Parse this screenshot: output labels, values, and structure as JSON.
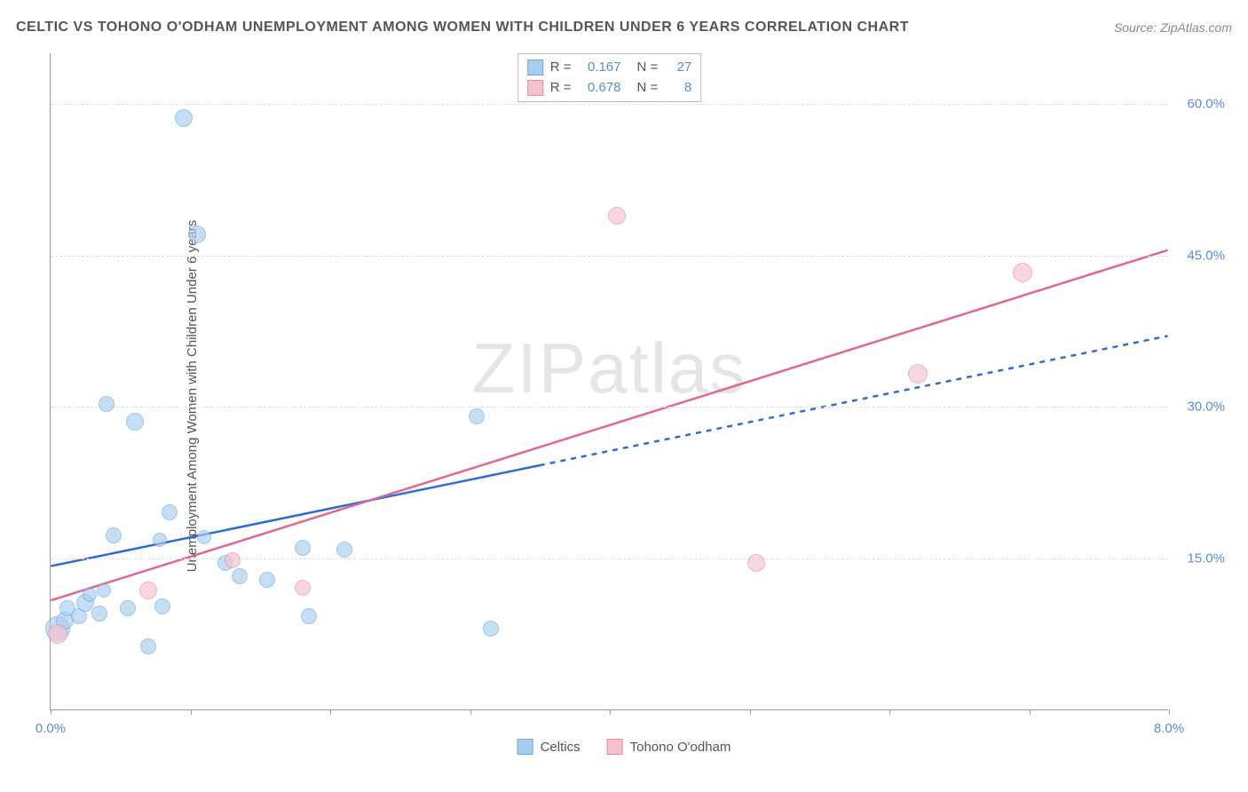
{
  "title": "CELTIC VS TOHONO O'ODHAM UNEMPLOYMENT AMONG WOMEN WITH CHILDREN UNDER 6 YEARS CORRELATION CHART",
  "source": "Source: ZipAtlas.com",
  "y_axis_label": "Unemployment Among Women with Children Under 6 years",
  "watermark": "ZIPatlas",
  "chart": {
    "type": "scatter",
    "xlim": [
      0,
      8
    ],
    "ylim": [
      0,
      65
    ],
    "x_ticks": [
      0,
      1,
      2,
      3,
      4,
      5,
      6,
      7,
      8
    ],
    "x_tick_labels": {
      "0": "0.0%",
      "8": "8.0%"
    },
    "y_ticks": [
      15,
      30,
      45,
      60
    ],
    "y_tick_labels": {
      "15": "15.0%",
      "30": "30.0%",
      "45": "45.0%",
      "60": "60.0%"
    },
    "background": "#ffffff",
    "grid_color": "#dddddd",
    "axis_color": "#999999",
    "tick_label_color": "#5a8bd6"
  },
  "series": [
    {
      "name": "Celtics",
      "fill": "#a9cdee",
      "stroke": "#6ea8de",
      "opacity": 0.65,
      "stats": {
        "R": "0.167",
        "N": "27"
      },
      "trend": {
        "color": "#2e6bd6",
        "width": 2.5,
        "solid_to_x": 3.5,
        "dash": "6,6",
        "y_at_x0": 14.2,
        "y_at_xmax": 37.0
      },
      "points": [
        {
          "x": 0.05,
          "y": 8.0,
          "r": 14
        },
        {
          "x": 0.1,
          "y": 8.8,
          "r": 10
        },
        {
          "x": 0.12,
          "y": 10.0,
          "r": 9
        },
        {
          "x": 0.2,
          "y": 9.2,
          "r": 9
        },
        {
          "x": 0.25,
          "y": 10.5,
          "r": 10
        },
        {
          "x": 0.28,
          "y": 11.3,
          "r": 8
        },
        {
          "x": 0.35,
          "y": 9.5,
          "r": 9
        },
        {
          "x": 0.38,
          "y": 11.8,
          "r": 8
        },
        {
          "x": 0.4,
          "y": 30.2,
          "r": 9
        },
        {
          "x": 0.45,
          "y": 17.2,
          "r": 9
        },
        {
          "x": 0.55,
          "y": 10.0,
          "r": 9
        },
        {
          "x": 0.6,
          "y": 28.5,
          "r": 10
        },
        {
          "x": 0.7,
          "y": 6.2,
          "r": 9
        },
        {
          "x": 0.78,
          "y": 16.8,
          "r": 8
        },
        {
          "x": 0.8,
          "y": 10.2,
          "r": 9
        },
        {
          "x": 0.85,
          "y": 19.5,
          "r": 9
        },
        {
          "x": 0.95,
          "y": 58.5,
          "r": 10
        },
        {
          "x": 1.05,
          "y": 47.0,
          "r": 10
        },
        {
          "x": 1.1,
          "y": 17.0,
          "r": 8
        },
        {
          "x": 1.25,
          "y": 14.5,
          "r": 9
        },
        {
          "x": 1.35,
          "y": 13.2,
          "r": 9
        },
        {
          "x": 1.55,
          "y": 12.8,
          "r": 9
        },
        {
          "x": 1.8,
          "y": 16.0,
          "r": 9
        },
        {
          "x": 1.85,
          "y": 9.2,
          "r": 9
        },
        {
          "x": 2.1,
          "y": 15.8,
          "r": 9
        },
        {
          "x": 3.05,
          "y": 29.0,
          "r": 9
        },
        {
          "x": 3.15,
          "y": 8.0,
          "r": 9
        }
      ]
    },
    {
      "name": "Tohono O'odham",
      "fill": "#f4c2cf",
      "stroke": "#e78aa5",
      "opacity": 0.65,
      "stats": {
        "R": "0.678",
        "N": "8"
      },
      "trend": {
        "color": "#e36690",
        "width": 2.5,
        "solid_to_x": 8.0,
        "dash": "",
        "y_at_x0": 10.8,
        "y_at_xmax": 45.5
      },
      "points": [
        {
          "x": 0.05,
          "y": 7.5,
          "r": 11
        },
        {
          "x": 0.7,
          "y": 11.8,
          "r": 10
        },
        {
          "x": 1.3,
          "y": 14.8,
          "r": 9
        },
        {
          "x": 1.8,
          "y": 12.0,
          "r": 9
        },
        {
          "x": 4.05,
          "y": 48.8,
          "r": 10
        },
        {
          "x": 5.05,
          "y": 14.5,
          "r": 10
        },
        {
          "x": 6.2,
          "y": 33.2,
          "r": 11
        },
        {
          "x": 6.95,
          "y": 43.2,
          "r": 11
        }
      ]
    }
  ],
  "legend": {
    "items": [
      {
        "label": "Celtics",
        "fill": "#a9cdee",
        "stroke": "#6ea8de"
      },
      {
        "label": "Tohono O'odham",
        "fill": "#f4c2cf",
        "stroke": "#e78aa5"
      }
    ]
  }
}
